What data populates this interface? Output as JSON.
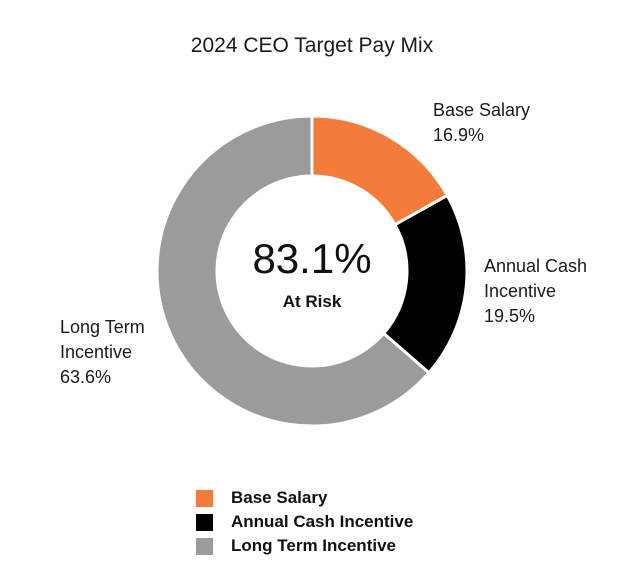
{
  "chart_data": {
    "type": "pie",
    "donut": true,
    "title": "2024 CEO Target Pay Mix",
    "slices": [
      {
        "name": "Base Salary",
        "value": 16.9,
        "value_label": "16.9%",
        "label_lines": [
          "Base Salary"
        ],
        "color": "#F47B3A"
      },
      {
        "name": "Annual Cash Incentive",
        "value": 19.5,
        "value_label": "19.5%",
        "label_lines": [
          "Annual Cash",
          "Incentive"
        ],
        "color": "#000000"
      },
      {
        "name": "Long Term Incentive",
        "value": 63.6,
        "value_label": "63.6%",
        "label_lines": [
          "Long Term",
          "Incentive"
        ],
        "color": "#9B9B9B"
      }
    ],
    "center": {
      "value": "83.1%",
      "caption": "At Risk"
    },
    "legend_position": "bottom"
  }
}
